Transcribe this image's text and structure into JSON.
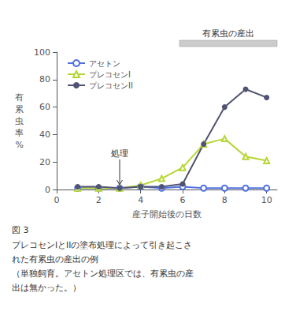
{
  "chart_data": {
    "type": "line",
    "xlabel": "産子開始後の日数",
    "ylabel": "有累虫率%",
    "x": [
      1,
      2,
      3,
      4,
      5,
      6,
      7,
      8,
      9,
      10
    ],
    "series": [
      {
        "name": "アセトン",
        "values": [
          1,
          1,
          1,
          2,
          1,
          2,
          1,
          1,
          1,
          1
        ],
        "marker": "open_circle"
      },
      {
        "name": "プレコセンI",
        "values": [
          1,
          1,
          1,
          3,
          8,
          16,
          33,
          37,
          24,
          21
        ],
        "marker": "open_triangle"
      },
      {
        "name": "プレコセンII",
        "values": [
          2,
          2,
          1,
          2,
          2,
          4,
          33,
          60,
          73,
          67
        ],
        "marker": "filled_circle"
      }
    ],
    "xlim": [
      0,
      10.5
    ],
    "ylim": [
      0,
      100
    ],
    "xticks": [
      0,
      2,
      4,
      6,
      8,
      10
    ],
    "yticks": [
      0,
      20,
      40,
      60,
      80,
      100
    ],
    "grid": false,
    "legend": "upper left",
    "annotations": [
      {
        "text": "処理",
        "x": 3.0
      },
      {
        "text": "有累虫の産出",
        "x_start": 5.85,
        "x_end": 10.5
      }
    ],
    "caption": [
      "図 3",
      "プレコセンIとIIの塗布処理によって引き起こさ",
      "れた有累虫の産出の例",
      "（単独飼育。アセトン処理区では、有累虫の産",
      "出は無かった。）"
    ]
  }
}
